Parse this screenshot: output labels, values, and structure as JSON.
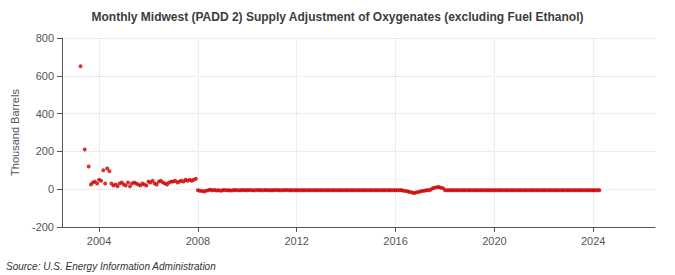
{
  "chart_data": {
    "type": "scatter",
    "title": "Monthly Midwest (PADD 2) Supply Adjustment of Oxygenates (excluding Fuel Ethanol)",
    "ylabel": "Thousand Barrels",
    "source": "Source: U.S. Energy Information Administration",
    "xlim": [
      2002.5,
      2026.5
    ],
    "ylim": [
      -200,
      800
    ],
    "xticks": [
      2004,
      2008,
      2012,
      2016,
      2020,
      2024
    ],
    "yticks": [
      -200,
      0,
      200,
      400,
      600,
      800
    ],
    "grid": true,
    "series": [
      {
        "color": "#cc0000",
        "x": [
          2003.25,
          2003.42,
          2003.58,
          2003.67,
          2003.75,
          2003.83,
          2003.92,
          2004.0,
          2004.08,
          2004.17,
          2004.25,
          2004.33,
          2004.42,
          2004.5,
          2004.58,
          2004.67,
          2004.75,
          2004.83,
          2004.92,
          2005.0,
          2005.08,
          2005.17,
          2005.25,
          2005.33,
          2005.42,
          2005.5,
          2005.58,
          2005.67,
          2005.75,
          2005.83,
          2005.92,
          2006.0,
          2006.08,
          2006.17,
          2006.25,
          2006.33,
          2006.42,
          2006.5,
          2006.58,
          2006.67,
          2006.75,
          2006.83,
          2006.92,
          2007.0,
          2007.08,
          2007.17,
          2007.25,
          2007.33,
          2007.42,
          2007.5,
          2007.58,
          2007.67,
          2007.75,
          2007.83,
          2007.92
        ],
        "values": [
          650,
          210,
          120,
          25,
          35,
          40,
          30,
          50,
          45,
          100,
          30,
          110,
          95,
          30,
          20,
          25,
          15,
          30,
          35,
          25,
          20,
          35,
          15,
          30,
          35,
          30,
          25,
          20,
          30,
          25,
          20,
          40,
          35,
          45,
          30,
          25,
          40,
          45,
          35,
          30,
          25,
          35,
          40,
          40,
          45,
          35,
          40,
          45,
          40,
          50,
          45,
          50,
          45,
          50,
          55
        ]
      },
      {
        "color": "#cc0000",
        "x": [
          2008.0,
          2008.08,
          2008.17,
          2008.25,
          2008.33,
          2008.42,
          2008.5,
          2008.58,
          2008.67,
          2008.75,
          2008.83,
          2008.92,
          2009.0,
          2009.08,
          2009.17,
          2009.25,
          2009.33,
          2009.42,
          2009.5,
          2009.58,
          2009.67,
          2009.75,
          2009.83,
          2009.92,
          2010.0,
          2010.08,
          2010.17,
          2010.25,
          2010.33,
          2010.42,
          2010.5,
          2010.58,
          2010.67,
          2010.75,
          2010.83,
          2010.92,
          2011.0,
          2011.08,
          2011.17,
          2011.25,
          2011.33,
          2011.42,
          2011.5,
          2011.58,
          2011.67,
          2011.75,
          2011.83,
          2011.92,
          2012.0,
          2012.08,
          2012.17,
          2012.25,
          2012.33,
          2012.42,
          2012.5,
          2012.58,
          2012.67,
          2012.75,
          2012.83,
          2012.92,
          2013.0,
          2013.08,
          2013.17,
          2013.25,
          2013.33,
          2013.42,
          2013.5,
          2013.58,
          2013.67,
          2013.75,
          2013.83,
          2013.92,
          2014.0,
          2014.08,
          2014.17,
          2014.25,
          2014.33,
          2014.42,
          2014.5,
          2014.58,
          2014.67,
          2014.75,
          2014.83,
          2014.92,
          2015.0,
          2015.08,
          2015.17,
          2015.25,
          2015.33,
          2015.42,
          2015.5,
          2015.58,
          2015.67,
          2015.75,
          2015.83,
          2015.92,
          2016.0,
          2016.08,
          2016.17,
          2016.25,
          2016.33,
          2016.42,
          2016.5,
          2016.58,
          2016.67,
          2016.75,
          2016.83,
          2016.92,
          2017.0,
          2017.08,
          2017.17,
          2017.25,
          2017.33,
          2017.42,
          2017.5,
          2017.58,
          2017.67,
          2017.75,
          2017.83,
          2017.92,
          2018.0,
          2018.08,
          2018.17,
          2018.25,
          2018.33,
          2018.42,
          2018.5,
          2018.58,
          2018.67,
          2018.75,
          2018.83,
          2018.92,
          2019.0,
          2019.08,
          2019.17,
          2019.25,
          2019.33,
          2019.42,
          2019.5,
          2019.58,
          2019.67,
          2019.75,
          2019.83,
          2019.92,
          2020.0,
          2020.08,
          2020.17,
          2020.25,
          2020.33,
          2020.42,
          2020.5,
          2020.58,
          2020.67,
          2020.75,
          2020.83,
          2020.92,
          2021.0,
          2021.08,
          2021.17,
          2021.25,
          2021.33,
          2021.42,
          2021.5,
          2021.58,
          2021.67,
          2021.75,
          2021.83,
          2021.92,
          2022.0,
          2022.08,
          2022.17,
          2022.25,
          2022.33,
          2022.42,
          2022.5,
          2022.58,
          2022.67,
          2022.75,
          2022.83,
          2022.92,
          2023.0,
          2023.08,
          2023.17,
          2023.25,
          2023.33,
          2023.42,
          2023.5,
          2023.58,
          2023.67,
          2023.75,
          2023.83,
          2023.92,
          2024.0,
          2024.08,
          2024.17,
          2024.25
        ],
        "values": [
          -5,
          -8,
          -10,
          -12,
          -8,
          -5,
          -3,
          -6,
          -4,
          -7,
          -5,
          -8,
          -5,
          -4,
          -6,
          -5,
          -7,
          -5,
          -4,
          -5,
          -6,
          -5,
          -4,
          -5,
          -5,
          -4,
          -5,
          -6,
          -5,
          -4,
          -5,
          -5,
          -5,
          -4,
          -5,
          -5,
          -5,
          -5,
          -4,
          -5,
          -5,
          -5,
          -5,
          -4,
          -5,
          -5,
          -5,
          -5,
          -5,
          -5,
          -5,
          -5,
          -5,
          -5,
          -5,
          -5,
          -5,
          -5,
          -5,
          -5,
          -5,
          -5,
          -5,
          -5,
          -5,
          -5,
          -5,
          -5,
          -5,
          -5,
          -5,
          -5,
          -5,
          -5,
          -5,
          -5,
          -5,
          -5,
          -5,
          -5,
          -5,
          -5,
          -5,
          -5,
          -5,
          -5,
          -5,
          -5,
          -5,
          -5,
          -5,
          -5,
          -5,
          -5,
          -5,
          -5,
          -5,
          -5,
          -5,
          -5,
          -8,
          -10,
          -12,
          -15,
          -18,
          -20,
          -18,
          -15,
          -12,
          -10,
          -8,
          -5,
          -5,
          -3,
          5,
          8,
          10,
          12,
          8,
          5,
          -5,
          -5,
          -5,
          -5,
          -5,
          -5,
          -5,
          -5,
          -5,
          -5,
          -5,
          -5,
          -5,
          -5,
          -5,
          -5,
          -5,
          -5,
          -5,
          -5,
          -5,
          -5,
          -5,
          -5,
          -5,
          -5,
          -5,
          -5,
          -5,
          -5,
          -5,
          -5,
          -5,
          -5,
          -5,
          -5,
          -5,
          -5,
          -5,
          -5,
          -5,
          -5,
          -5,
          -5,
          -5,
          -5,
          -5,
          -5,
          -5,
          -5,
          -5,
          -5,
          -5,
          -5,
          -5,
          -5,
          -5,
          -5,
          -5,
          -5,
          -5,
          -5,
          -5,
          -5,
          -5,
          -5,
          -5,
          -5,
          -5,
          -5,
          -5,
          -5,
          -5,
          -5,
          -5,
          -5
        ]
      }
    ]
  }
}
